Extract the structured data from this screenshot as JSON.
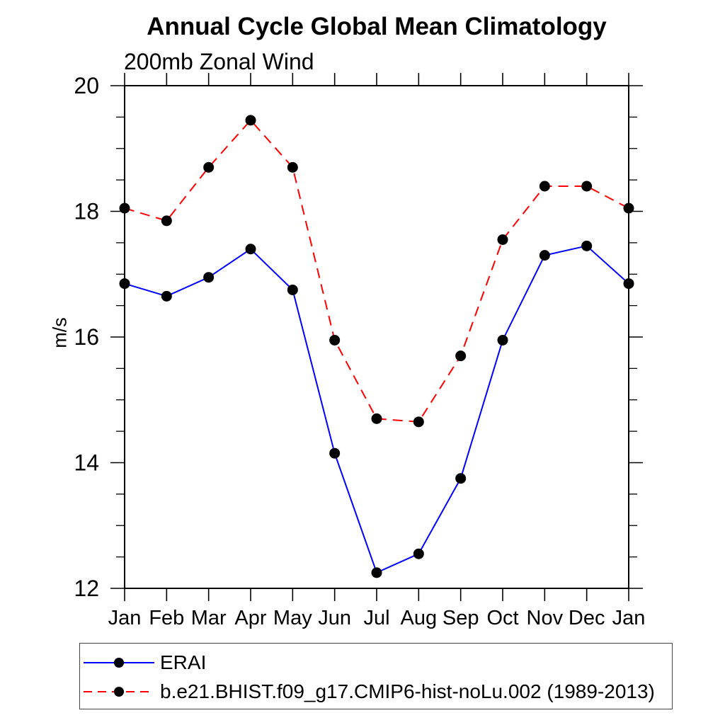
{
  "chart_data": {
    "type": "line",
    "title": "Annual Cycle Global Mean Climatology",
    "subtitle": "200mb Zonal Wind",
    "ylabel": "m/s",
    "xlabel": "",
    "categories": [
      "Jan",
      "Feb",
      "Mar",
      "Apr",
      "May",
      "Jun",
      "Jul",
      "Aug",
      "Sep",
      "Oct",
      "Nov",
      "Dec",
      "Jan"
    ],
    "ylim": [
      12,
      20
    ],
    "ytick_major": [
      12,
      14,
      16,
      18,
      20
    ],
    "ytick_minor_step": 0.5,
    "grid": false,
    "legend_position": "bottom-left",
    "axis_color": "#000000",
    "marker_color": "#000000",
    "series": [
      {
        "name": "ERAI",
        "color": "#0000ff",
        "line_style": "solid",
        "marker": "filled-circle",
        "values": [
          16.85,
          16.65,
          16.95,
          17.4,
          16.75,
          14.15,
          12.25,
          12.55,
          13.75,
          15.95,
          17.3,
          17.45,
          16.85
        ]
      },
      {
        "name": "b.e21.BHIST.f09_g17.CMIP6-hist-noLu.002 (1989-2013)",
        "color": "#ff0000",
        "line_style": "dashed",
        "marker": "filled-circle",
        "values": [
          18.05,
          17.85,
          18.7,
          19.45,
          18.7,
          15.95,
          14.7,
          14.65,
          15.7,
          17.55,
          18.4,
          18.4,
          18.05
        ]
      }
    ]
  }
}
